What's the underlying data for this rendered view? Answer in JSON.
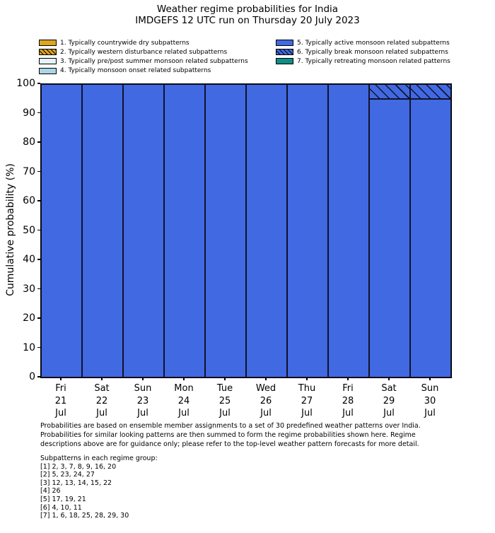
{
  "title": {
    "line1": "Weather regime probabilities for India",
    "line2": "IMDGEFS 12 UTC run on Thursday 20 July 2023"
  },
  "colors": {
    "regime1_dry": "#dda522",
    "regime3_prepost": "#e3f4f9",
    "regime4_onset": "#a9d5e5",
    "regime5_active": "#4169e1",
    "regime7_retreating": "#0e8e86",
    "bar_edge": "#11112a",
    "axis": "#000000"
  },
  "chart_data": {
    "type": "bar",
    "stacked": true,
    "grid": false,
    "legend_position": "top",
    "ylabel": "Cumulative probability (%)",
    "ylim": [
      0,
      100
    ],
    "yticks": [
      0,
      10,
      20,
      30,
      40,
      50,
      60,
      70,
      80,
      90,
      100
    ],
    "categories": [
      {
        "day": "Fri",
        "date": "21",
        "month": "Jul"
      },
      {
        "day": "Sat",
        "date": "22",
        "month": "Jul"
      },
      {
        "day": "Sun",
        "date": "23",
        "month": "Jul"
      },
      {
        "day": "Mon",
        "date": "24",
        "month": "Jul"
      },
      {
        "day": "Tue",
        "date": "25",
        "month": "Jul"
      },
      {
        "day": "Wed",
        "date": "26",
        "month": "Jul"
      },
      {
        "day": "Thu",
        "date": "27",
        "month": "Jul"
      },
      {
        "day": "Fri",
        "date": "28",
        "month": "Jul"
      },
      {
        "day": "Sat",
        "date": "29",
        "month": "Jul"
      },
      {
        "day": "Sun",
        "date": "30",
        "month": "Jul"
      }
    ],
    "series": [
      {
        "name": "1. Typically countrywide dry subpatterns",
        "color": "#dda522",
        "hatch": false,
        "values": [
          0,
          0,
          0,
          0,
          0,
          0,
          0,
          0,
          0,
          0
        ]
      },
      {
        "name": "2. Typically western disturbance related subpatterns",
        "color": "#dda522",
        "hatch": true,
        "values": [
          0,
          0,
          0,
          0,
          0,
          0,
          0,
          0,
          0,
          0
        ]
      },
      {
        "name": "3. Typically pre/post summer monsoon related subpatterns",
        "color": "#e3f4f9",
        "hatch": false,
        "values": [
          0,
          0,
          0,
          0,
          0,
          0,
          0,
          0,
          0,
          0
        ]
      },
      {
        "name": "4. Typically monsoon onset related subpatterns",
        "color": "#a9d5e5",
        "hatch": false,
        "values": [
          0,
          0,
          0,
          0,
          0,
          0,
          0,
          0,
          0,
          0
        ]
      },
      {
        "name": "5. Typically active monsoon related subpatterns",
        "color": "#4169e1",
        "hatch": false,
        "values": [
          100,
          100,
          100,
          100,
          100,
          100,
          100,
          100,
          95,
          95
        ]
      },
      {
        "name": "6. Typically break monsoon related subpatterns",
        "color": "#4169e1",
        "hatch": true,
        "values": [
          0,
          0,
          0,
          0,
          0,
          0,
          0,
          0,
          5,
          5
        ]
      },
      {
        "name": "7. Typically retreating monsoon related patterns",
        "color": "#0e8e86",
        "hatch": false,
        "values": [
          0,
          0,
          0,
          0,
          0,
          0,
          0,
          0,
          0,
          0
        ]
      }
    ]
  },
  "footnote": {
    "lines": [
      "Probabilities are based on ensemble member assignments to a set of 30 predefined weather patterns over India.",
      "Probabilities for similar looking patterns are then summed to form the regime probabilities shown here. Regime",
      "descriptions above are for guidance only; please refer to the top-level weather pattern forecasts for more detail."
    ]
  },
  "subpatterns": {
    "title": "Subpatterns in each regime group:",
    "lines": [
      "[1] 2, 3, 7, 8, 9, 16, 20",
      "[2] 5, 23, 24, 27",
      "[3] 12, 13, 14, 15, 22",
      "[4] 26",
      "[5] 17, 19, 21",
      "[6] 4, 10, 11",
      "[7] 1, 6, 18, 25, 28, 29, 30"
    ]
  }
}
